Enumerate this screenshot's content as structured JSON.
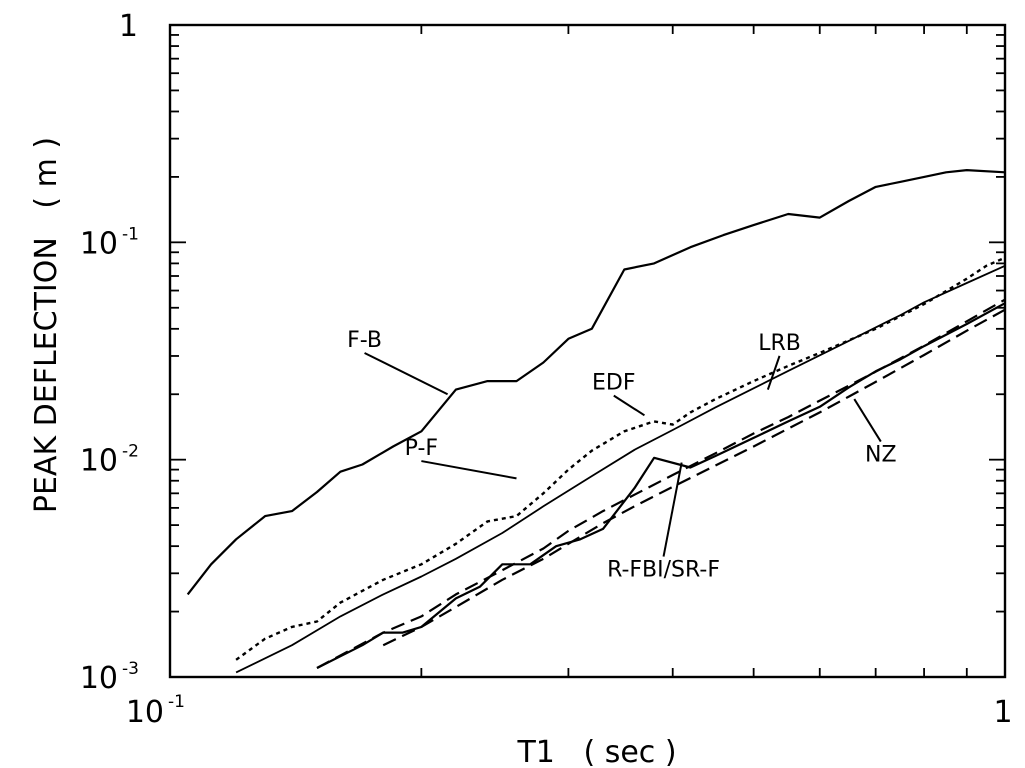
{
  "chart_data": {
    "type": "line",
    "xscale": "log",
    "yscale": "log",
    "xlim": [
      0.1,
      1
    ],
    "ylim": [
      0.001,
      1
    ],
    "xlabel": "T1   ( sec )",
    "ylabel": "PEAK DEFLECTION   ( m )",
    "grid": false,
    "x_ticks": [
      {
        "base": "10",
        "exp": "-1",
        "value": 0.1
      },
      {
        "base": "1",
        "exp": "",
        "value": 1
      }
    ],
    "y_ticks": [
      {
        "base": "10",
        "exp": "-3",
        "value": 0.001
      },
      {
        "base": "10",
        "exp": "-2",
        "value": 0.01
      },
      {
        "base": "10",
        "exp": "-1",
        "value": 0.1
      },
      {
        "base": "1",
        "exp": "",
        "value": 1
      }
    ],
    "series": [
      {
        "name": "F-B",
        "style": "solid",
        "points": [
          [
            0.105,
            0.0024
          ],
          [
            0.112,
            0.0033
          ],
          [
            0.12,
            0.0043
          ],
          [
            0.13,
            0.0055
          ],
          [
            0.14,
            0.0058
          ],
          [
            0.15,
            0.0071
          ],
          [
            0.16,
            0.0088
          ],
          [
            0.17,
            0.0095
          ],
          [
            0.185,
            0.0115
          ],
          [
            0.2,
            0.0135
          ],
          [
            0.22,
            0.021
          ],
          [
            0.24,
            0.023
          ],
          [
            0.26,
            0.023
          ],
          [
            0.28,
            0.028
          ],
          [
            0.3,
            0.036
          ],
          [
            0.32,
            0.04
          ],
          [
            0.35,
            0.075
          ],
          [
            0.38,
            0.08
          ],
          [
            0.42,
            0.095
          ],
          [
            0.46,
            0.108
          ],
          [
            0.5,
            0.12
          ],
          [
            0.55,
            0.135
          ],
          [
            0.6,
            0.13
          ],
          [
            0.65,
            0.155
          ],
          [
            0.7,
            0.18
          ],
          [
            0.75,
            0.19
          ],
          [
            0.8,
            0.2
          ],
          [
            0.85,
            0.21
          ],
          [
            0.9,
            0.215
          ],
          [
            1.0,
            0.21
          ]
        ]
      },
      {
        "name": "EDF",
        "style": "dotted",
        "points": [
          [
            0.12,
            0.0012
          ],
          [
            0.13,
            0.0015
          ],
          [
            0.14,
            0.0017
          ],
          [
            0.15,
            0.0018
          ],
          [
            0.16,
            0.0022
          ],
          [
            0.18,
            0.0028
          ],
          [
            0.2,
            0.0033
          ],
          [
            0.22,
            0.0041
          ],
          [
            0.24,
            0.0052
          ],
          [
            0.26,
            0.0055
          ],
          [
            0.28,
            0.007
          ],
          [
            0.3,
            0.009
          ],
          [
            0.32,
            0.011
          ],
          [
            0.35,
            0.0135
          ],
          [
            0.38,
            0.015
          ],
          [
            0.4,
            0.0145
          ],
          [
            0.42,
            0.0165
          ],
          [
            0.45,
            0.019
          ],
          [
            0.5,
            0.023
          ],
          [
            0.55,
            0.027
          ],
          [
            0.6,
            0.031
          ],
          [
            0.7,
            0.04
          ],
          [
            0.8,
            0.052
          ],
          [
            0.9,
            0.068
          ],
          [
            0.95,
            0.078
          ],
          [
            1.0,
            0.085
          ]
        ]
      },
      {
        "name": "P-F",
        "style": "solid-thin",
        "points": [
          [
            0.12,
            0.00105
          ],
          [
            0.14,
            0.0014
          ],
          [
            0.16,
            0.0019
          ],
          [
            0.18,
            0.0024
          ],
          [
            0.2,
            0.0029
          ],
          [
            0.22,
            0.0035
          ],
          [
            0.25,
            0.0046
          ],
          [
            0.28,
            0.0061
          ],
          [
            0.32,
            0.0084
          ],
          [
            0.36,
            0.0111
          ],
          [
            0.4,
            0.0137
          ],
          [
            0.45,
            0.0174
          ],
          [
            0.5,
            0.0213
          ],
          [
            0.55,
            0.0256
          ],
          [
            0.6,
            0.0302
          ],
          [
            0.65,
            0.0352
          ],
          [
            0.7,
            0.0406
          ],
          [
            0.75,
            0.0463
          ],
          [
            0.8,
            0.053
          ],
          [
            0.9,
            0.065
          ],
          [
            1.0,
            0.078
          ]
        ]
      },
      {
        "name": "LRB",
        "style": "dashed",
        "points": [
          [
            0.15,
            0.0011
          ],
          [
            0.18,
            0.0016
          ],
          [
            0.2,
            0.0019
          ],
          [
            0.22,
            0.0024
          ],
          [
            0.25,
            0.0031
          ],
          [
            0.28,
            0.0039
          ],
          [
            0.3,
            0.0047
          ],
          [
            0.33,
            0.0058
          ],
          [
            0.36,
            0.0069
          ],
          [
            0.4,
            0.0085
          ],
          [
            0.45,
            0.0107
          ],
          [
            0.5,
            0.0132
          ],
          [
            0.55,
            0.0157
          ],
          [
            0.6,
            0.0187
          ],
          [
            0.65,
            0.0219
          ],
          [
            0.7,
            0.0254
          ],
          [
            0.75,
            0.0293
          ],
          [
            0.8,
            0.0335
          ],
          [
            0.9,
            0.0433
          ],
          [
            1.0,
            0.0545
          ]
        ]
      },
      {
        "name": "NZ",
        "style": "dashed",
        "points": [
          [
            0.15,
            0.00095
          ],
          [
            0.18,
            0.0014
          ],
          [
            0.2,
            0.0017
          ],
          [
            0.22,
            0.0021
          ],
          [
            0.25,
            0.0028
          ],
          [
            0.28,
            0.0035
          ],
          [
            0.3,
            0.0041
          ],
          [
            0.33,
            0.0051
          ],
          [
            0.36,
            0.0061
          ],
          [
            0.4,
            0.0075
          ],
          [
            0.45,
            0.0094
          ],
          [
            0.5,
            0.0115
          ],
          [
            0.55,
            0.0139
          ],
          [
            0.6,
            0.0165
          ],
          [
            0.65,
            0.0195
          ],
          [
            0.7,
            0.0228
          ],
          [
            0.75,
            0.0264
          ],
          [
            0.8,
            0.0303
          ],
          [
            0.9,
            0.0392
          ],
          [
            1.0,
            0.049
          ]
        ]
      },
      {
        "name": "R-FBI/SR-F",
        "style": "solid",
        "points": [
          [
            0.15,
            0.0011
          ],
          [
            0.17,
            0.0014
          ],
          [
            0.18,
            0.0016
          ],
          [
            0.19,
            0.0016
          ],
          [
            0.2,
            0.0017
          ],
          [
            0.22,
            0.0023
          ],
          [
            0.235,
            0.0026
          ],
          [
            0.25,
            0.0033
          ],
          [
            0.27,
            0.0033
          ],
          [
            0.29,
            0.004
          ],
          [
            0.31,
            0.0043
          ],
          [
            0.33,
            0.0048
          ],
          [
            0.36,
            0.0074
          ],
          [
            0.38,
            0.0102
          ],
          [
            0.42,
            0.0092
          ],
          [
            0.45,
            0.0104
          ],
          [
            0.5,
            0.0126
          ],
          [
            0.55,
            0.015
          ],
          [
            0.6,
            0.0175
          ],
          [
            0.65,
            0.0215
          ],
          [
            0.7,
            0.0255
          ],
          [
            0.75,
            0.029
          ],
          [
            0.8,
            0.0333
          ],
          [
            0.9,
            0.0421
          ],
          [
            1.0,
            0.0525
          ]
        ]
      }
    ],
    "annotations": [
      {
        "text": "F-B",
        "series": "F-B",
        "label_at": [
          0.171,
          0.033
        ],
        "arrow_to": [
          0.215,
          0.02
        ]
      },
      {
        "text": "EDF",
        "series": "EDF",
        "label_at": [
          0.34,
          0.021
        ],
        "arrow_to": [
          0.37,
          0.016
        ]
      },
      {
        "text": "LRB",
        "series": "LRB",
        "label_at": [
          0.537,
          0.032
        ],
        "arrow_to": [
          0.52,
          0.021
        ]
      },
      {
        "text": "P-F",
        "series": "P-F",
        "label_at": [
          0.2,
          0.0105
        ],
        "arrow_to": [
          0.26,
          0.0082
        ]
      },
      {
        "text": "NZ",
        "series": "NZ",
        "label_at": [
          0.71,
          0.0098
        ],
        "arrow_to": [
          0.66,
          0.019
        ]
      },
      {
        "text": "R-FBI/SR-F",
        "series": "R-FBI/SR-F",
        "label_at": [
          0.39,
          0.0029
        ],
        "arrow_to": [
          0.41,
          0.0097
        ]
      }
    ]
  }
}
